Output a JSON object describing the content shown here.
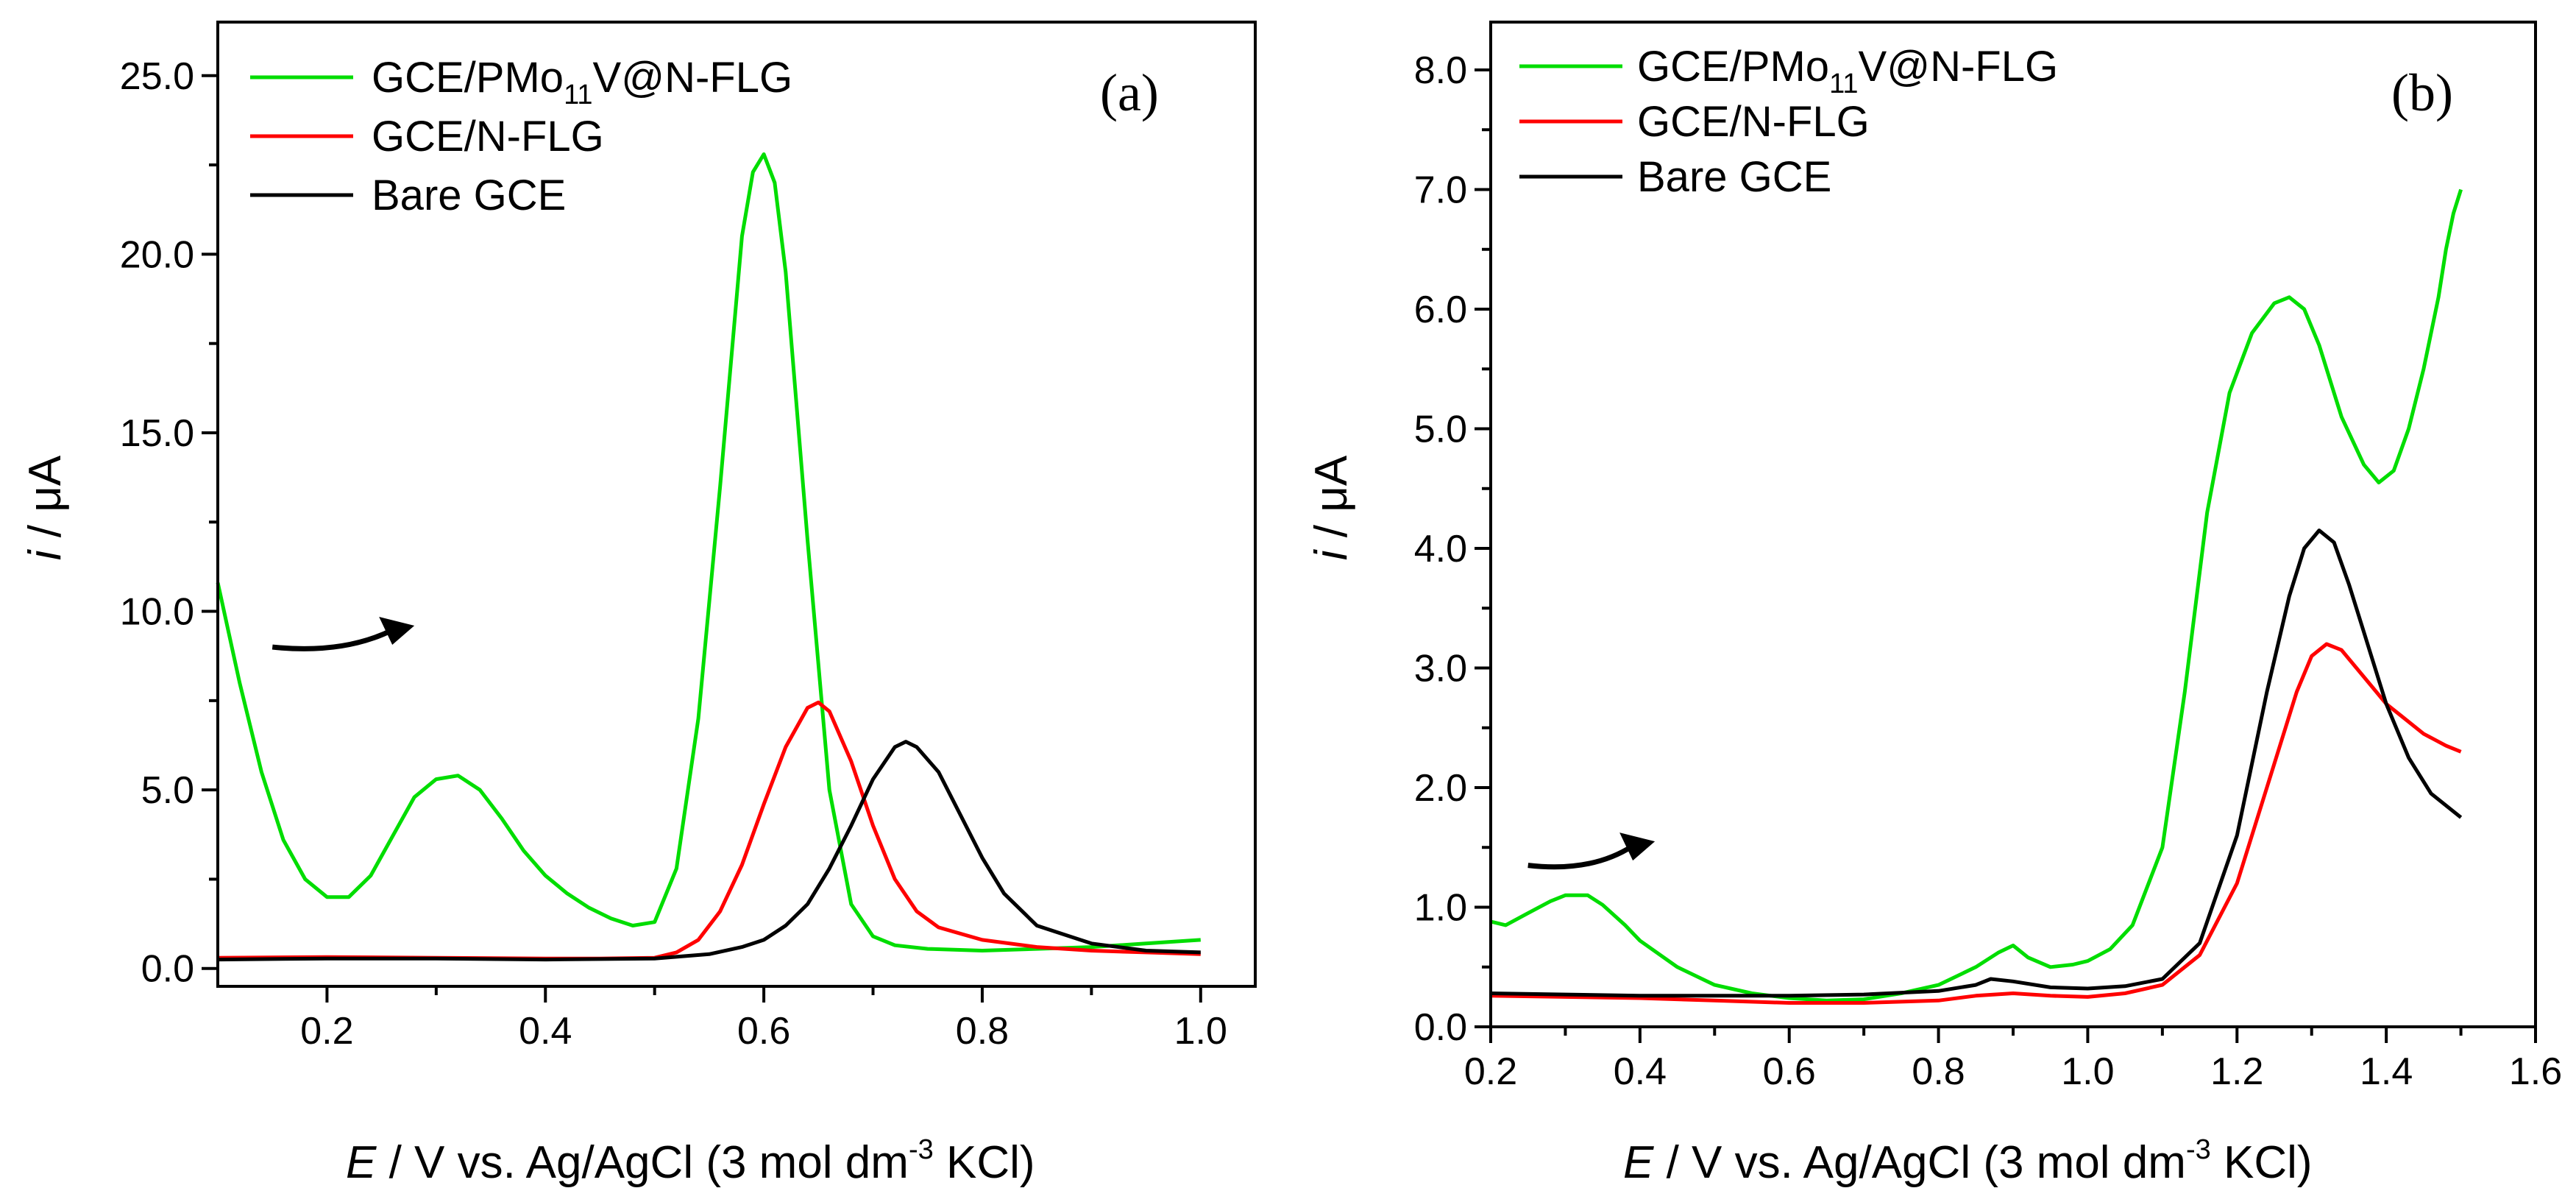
{
  "chart_data": [
    {
      "type": "line",
      "panel_label": "(a)",
      "xlabel": {
        "symbol": "E",
        "text": " / V vs. Ag/AgCl (3 mol dm",
        "superscript": "-3",
        "suffix": " KCl)"
      },
      "ylabel": {
        "symbol": "i",
        "text": " / μA"
      },
      "xlim": [
        0.1,
        1.05
      ],
      "ylim": [
        -0.5,
        26.5
      ],
      "xticks": [
        0.2,
        0.4,
        0.6,
        0.8,
        1.0
      ],
      "xtick_labels": [
        "0.2",
        "0.4",
        "0.6",
        "0.8",
        "1.0"
      ],
      "yticks": [
        0,
        5,
        10,
        15,
        20,
        25
      ],
      "ytick_labels": [
        "0.0",
        "5.0",
        "10.0",
        "15.0",
        "20.0",
        "25.0"
      ],
      "legend": [
        {
          "main": "GCE/PMo",
          "sub": "11",
          "rest": "V@N-FLG",
          "color": "#00dd00"
        },
        {
          "main": "GCE/N-FLG",
          "sub": "",
          "rest": "",
          "color": "#ff0000"
        },
        {
          "main": "Bare GCE",
          "sub": "",
          "rest": "",
          "color": "#000000"
        }
      ],
      "arrow": {
        "from": [
          0.15,
          9.0
        ],
        "to": [
          0.28,
          9.6
        ]
      },
      "series": [
        {
          "name": "GCE/PMo11V@N-FLG",
          "color": "#00dd00",
          "x": [
            0.1,
            0.12,
            0.14,
            0.16,
            0.18,
            0.2,
            0.22,
            0.24,
            0.26,
            0.28,
            0.3,
            0.32,
            0.34,
            0.36,
            0.38,
            0.4,
            0.42,
            0.44,
            0.46,
            0.48,
            0.5,
            0.52,
            0.54,
            0.56,
            0.58,
            0.59,
            0.6,
            0.61,
            0.62,
            0.64,
            0.66,
            0.68,
            0.7,
            0.72,
            0.75,
            0.8,
            0.85,
            0.9,
            0.95,
            1.0
          ],
          "y": [
            10.8,
            8.0,
            5.5,
            3.6,
            2.5,
            2.0,
            2.0,
            2.6,
            3.7,
            4.8,
            5.3,
            5.4,
            5.0,
            4.2,
            3.3,
            2.6,
            2.1,
            1.7,
            1.4,
            1.2,
            1.3,
            2.8,
            7.0,
            13.5,
            20.5,
            22.3,
            22.8,
            22.0,
            19.5,
            12.0,
            5.0,
            1.8,
            0.9,
            0.65,
            0.55,
            0.5,
            0.55,
            0.6,
            0.7,
            0.8
          ]
        },
        {
          "name": "GCE/N-FLG",
          "color": "#ff0000",
          "x": [
            0.1,
            0.2,
            0.3,
            0.4,
            0.45,
            0.5,
            0.52,
            0.54,
            0.56,
            0.58,
            0.6,
            0.62,
            0.64,
            0.65,
            0.66,
            0.68,
            0.7,
            0.72,
            0.74,
            0.76,
            0.8,
            0.85,
            0.9,
            0.95,
            1.0
          ],
          "y": [
            0.3,
            0.32,
            0.3,
            0.28,
            0.28,
            0.3,
            0.45,
            0.8,
            1.6,
            2.9,
            4.6,
            6.2,
            7.3,
            7.45,
            7.2,
            5.8,
            4.0,
            2.5,
            1.6,
            1.15,
            0.8,
            0.6,
            0.5,
            0.45,
            0.4
          ]
        },
        {
          "name": "Bare GCE",
          "color": "#000000",
          "x": [
            0.1,
            0.2,
            0.3,
            0.4,
            0.5,
            0.55,
            0.58,
            0.6,
            0.62,
            0.64,
            0.66,
            0.68,
            0.7,
            0.72,
            0.73,
            0.74,
            0.76,
            0.78,
            0.8,
            0.82,
            0.85,
            0.9,
            0.95,
            1.0
          ],
          "y": [
            0.25,
            0.28,
            0.28,
            0.25,
            0.28,
            0.4,
            0.6,
            0.8,
            1.2,
            1.8,
            2.8,
            4.0,
            5.3,
            6.2,
            6.35,
            6.2,
            5.5,
            4.3,
            3.1,
            2.1,
            1.2,
            0.7,
            0.5,
            0.45
          ]
        }
      ]
    },
    {
      "type": "line",
      "panel_label": "(b)",
      "xlabel": {
        "symbol": "E",
        "text": " / V vs. Ag/AgCl (3 mol dm",
        "superscript": "-3",
        "suffix": " KCl)"
      },
      "ylabel": {
        "symbol": "i",
        "text": " / μA"
      },
      "xlim": [
        0.2,
        1.6
      ],
      "ylim": [
        0.0,
        8.4
      ],
      "xticks": [
        0.2,
        0.4,
        0.6,
        0.8,
        1.0,
        1.2,
        1.4,
        1.6
      ],
      "xtick_labels": [
        "0.2",
        "0.4",
        "0.6",
        "0.8",
        "1.0",
        "1.2",
        "1.4",
        "1.6"
      ],
      "yticks": [
        0,
        1,
        2,
        3,
        4,
        5,
        6,
        7,
        8
      ],
      "ytick_labels": [
        "0.0",
        "1.0",
        "2.0",
        "3.0",
        "4.0",
        "5.0",
        "6.0",
        "7.0",
        "8.0"
      ],
      "legend": [
        {
          "main": "GCE/PMo",
          "sub": "11",
          "rest": "V@N-FLG",
          "color": "#00dd00"
        },
        {
          "main": "GCE/N-FLG",
          "sub": "",
          "rest": "",
          "color": "#ff0000"
        },
        {
          "main": "Bare GCE",
          "sub": "",
          "rest": "",
          "color": "#000000"
        }
      ],
      "arrow": {
        "from": [
          0.25,
          1.35
        ],
        "to": [
          0.42,
          1.55
        ]
      },
      "series": [
        {
          "name": "GCE/PMo11V@N-FLG",
          "color": "#00dd00",
          "x": [
            0.2,
            0.22,
            0.25,
            0.28,
            0.3,
            0.33,
            0.35,
            0.38,
            0.4,
            0.45,
            0.5,
            0.55,
            0.6,
            0.65,
            0.7,
            0.75,
            0.8,
            0.85,
            0.88,
            0.9,
            0.92,
            0.95,
            0.98,
            1.0,
            1.03,
            1.06,
            1.1,
            1.13,
            1.16,
            1.19,
            1.22,
            1.25,
            1.27,
            1.29,
            1.31,
            1.34,
            1.37,
            1.39,
            1.41,
            1.43,
            1.45,
            1.47,
            1.48,
            1.49,
            1.5
          ],
          "y": [
            0.88,
            0.85,
            0.95,
            1.05,
            1.1,
            1.1,
            1.02,
            0.85,
            0.72,
            0.5,
            0.35,
            0.28,
            0.24,
            0.22,
            0.23,
            0.28,
            0.35,
            0.5,
            0.62,
            0.68,
            0.58,
            0.5,
            0.52,
            0.55,
            0.65,
            0.85,
            1.5,
            2.8,
            4.3,
            5.3,
            5.8,
            6.05,
            6.1,
            6.0,
            5.7,
            5.1,
            4.7,
            4.55,
            4.65,
            5.0,
            5.5,
            6.1,
            6.5,
            6.8,
            7.0
          ]
        },
        {
          "name": "GCE/N-FLG",
          "color": "#ff0000",
          "x": [
            0.2,
            0.3,
            0.4,
            0.5,
            0.6,
            0.7,
            0.8,
            0.85,
            0.9,
            0.95,
            1.0,
            1.05,
            1.1,
            1.15,
            1.2,
            1.25,
            1.28,
            1.3,
            1.32,
            1.34,
            1.36,
            1.38,
            1.4,
            1.42,
            1.45,
            1.48,
            1.5
          ],
          "y": [
            0.26,
            0.25,
            0.24,
            0.22,
            0.2,
            0.2,
            0.22,
            0.26,
            0.28,
            0.26,
            0.25,
            0.28,
            0.35,
            0.6,
            1.2,
            2.2,
            2.8,
            3.1,
            3.2,
            3.15,
            3.0,
            2.85,
            2.7,
            2.6,
            2.45,
            2.35,
            2.3
          ]
        },
        {
          "name": "Bare GCE",
          "color": "#000000",
          "x": [
            0.2,
            0.3,
            0.4,
            0.5,
            0.6,
            0.7,
            0.8,
            0.85,
            0.87,
            0.9,
            0.95,
            1.0,
            1.05,
            1.1,
            1.15,
            1.2,
            1.24,
            1.27,
            1.29,
            1.31,
            1.33,
            1.35,
            1.37,
            1.4,
            1.43,
            1.46,
            1.5
          ],
          "y": [
            0.28,
            0.27,
            0.26,
            0.26,
            0.26,
            0.27,
            0.3,
            0.35,
            0.4,
            0.38,
            0.33,
            0.32,
            0.34,
            0.4,
            0.7,
            1.6,
            2.8,
            3.6,
            4.0,
            4.15,
            4.05,
            3.7,
            3.3,
            2.7,
            2.25,
            1.95,
            1.75
          ]
        }
      ]
    }
  ]
}
